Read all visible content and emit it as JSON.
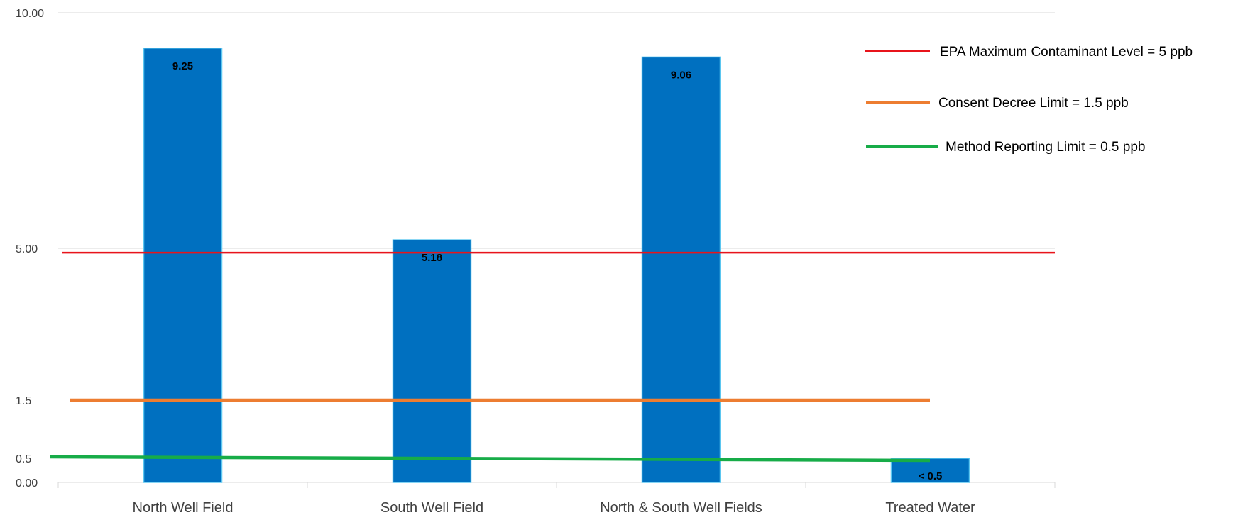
{
  "chart_data": {
    "type": "bar",
    "categories": [
      "North Well Field",
      "South Well Field",
      "North & South Well Fields",
      "Treated Water"
    ],
    "values": [
      9.25,
      5.18,
      9.06,
      0.5
    ],
    "data_labels": [
      "9.25",
      "5.18",
      "9.06",
      "< 0.5"
    ],
    "y_ticks": [
      {
        "label": "10.00",
        "value": 10
      },
      {
        "label": "5.00",
        "value": 5
      },
      {
        "label": "1.5",
        "value": 1.5
      },
      {
        "label": "0.5",
        "value": 0.5
      },
      {
        "label": "0.00",
        "value": 0
      }
    ],
    "ylim": [
      0,
      10
    ],
    "grid": "horizontal",
    "legend_position": "top-right",
    "reference_lines": [
      {
        "name": "EPA Maximum Contaminant Level = 5 ppb",
        "value": 4.9,
        "color": "#E8141B"
      },
      {
        "name": "Consent Decree Limit = 1.5 ppb",
        "value": 1.5,
        "color": "#ED7D31"
      },
      {
        "name": "Method Reporting Limit = 0.5 ppb",
        "value": 0.5,
        "color": "#17AC48"
      }
    ],
    "bar_color": "#0070C0",
    "bar_border_color": "#5BC6F0",
    "title": "",
    "xlabel": "",
    "ylabel": ""
  }
}
